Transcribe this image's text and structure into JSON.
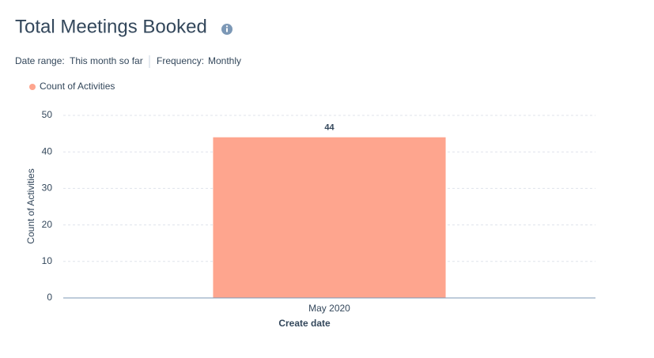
{
  "chart_data": {
    "type": "bar",
    "title": "Total Meetings Booked",
    "filters": [
      {
        "label": "Date range:",
        "value": "This month so far"
      },
      {
        "label": "Frequency:",
        "value": "Monthly"
      }
    ],
    "categories": [
      "May 2020"
    ],
    "series": [
      {
        "name": "Count of Activities",
        "color": "#fea58e",
        "values": [
          44
        ]
      }
    ],
    "x_label": "Create date",
    "y_label": "Count of Activities",
    "ylim": [
      0,
      50
    ],
    "yticks": [
      0,
      10,
      20,
      30,
      40,
      50
    ],
    "grid": true
  }
}
